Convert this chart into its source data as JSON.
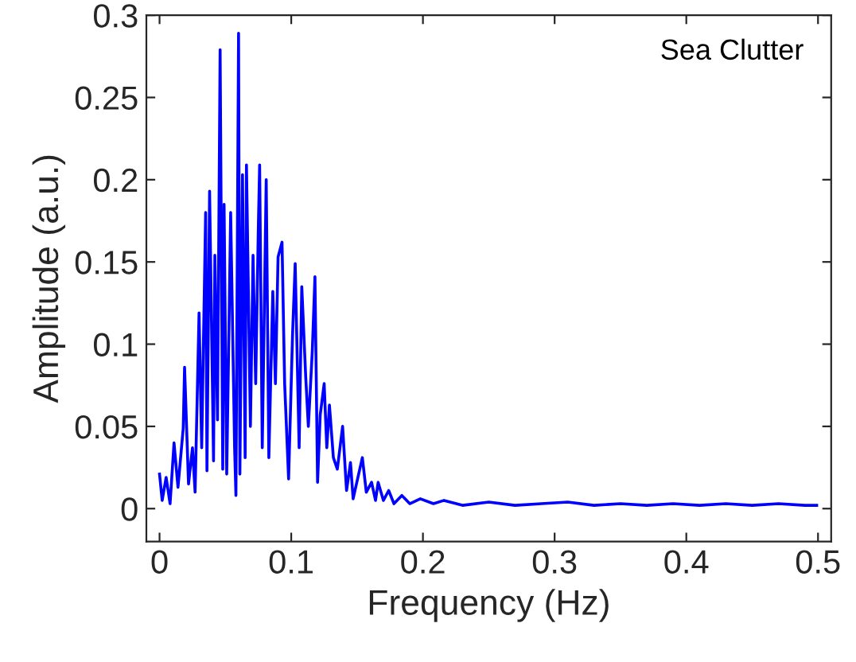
{
  "chart_data": {
    "type": "line",
    "xlabel": "Frequency (Hz)",
    "ylabel": "Amplitude (a.u.)",
    "annotations": [
      "Sea Clutter"
    ],
    "xlim": [
      -0.01,
      0.51
    ],
    "ylim": [
      -0.02,
      0.3
    ],
    "xticks": [
      0,
      0.1,
      0.2,
      0.3,
      0.4,
      0.5
    ],
    "yticks": [
      0,
      0.05,
      0.1,
      0.15,
      0.2,
      0.25,
      0.3
    ],
    "grid": false,
    "marker": "none",
    "line_style": "solid",
    "series": [
      {
        "color": "#0000ff",
        "x": [
          0,
          0.002,
          0.005,
          0.008,
          0.011,
          0.014,
          0.018,
          0.019,
          0.022,
          0.025,
          0.027,
          0.03,
          0.032,
          0.035,
          0.036,
          0.038,
          0.041,
          0.042,
          0.044,
          0.046,
          0.048,
          0.049,
          0.051,
          0.053,
          0.054,
          0.057,
          0.058,
          0.06,
          0.061,
          0.063,
          0.065,
          0.066,
          0.069,
          0.071,
          0.073,
          0.075,
          0.076,
          0.078,
          0.081,
          0.083,
          0.086,
          0.088,
          0.09,
          0.093,
          0.095,
          0.098,
          0.101,
          0.103,
          0.106,
          0.108,
          0.111,
          0.113,
          0.116,
          0.118,
          0.12,
          0.122,
          0.125,
          0.127,
          0.129,
          0.132,
          0.135,
          0.139,
          0.142,
          0.145,
          0.147,
          0.154,
          0.157,
          0.161,
          0.164,
          0.166,
          0.17,
          0.174,
          0.178,
          0.184,
          0.19,
          0.198,
          0.208,
          0.216,
          0.23,
          0.25,
          0.27,
          0.29,
          0.31,
          0.33,
          0.35,
          0.37,
          0.39,
          0.41,
          0.43,
          0.45,
          0.47,
          0.49,
          0.499
        ],
        "values": [
          0.021,
          0.005,
          0.019,
          0.003,
          0.04,
          0.013,
          0.049,
          0.086,
          0.015,
          0.037,
          0.01,
          0.119,
          0.037,
          0.18,
          0.023,
          0.193,
          0.029,
          0.154,
          0.054,
          0.279,
          0.024,
          0.185,
          0.021,
          0.125,
          0.18,
          0.037,
          0.008,
          0.289,
          0.021,
          0.203,
          0.031,
          0.209,
          0.05,
          0.154,
          0.076,
          0.17,
          0.209,
          0.037,
          0.2,
          0.031,
          0.132,
          0.076,
          0.153,
          0.162,
          0.076,
          0.018,
          0.106,
          0.149,
          0.037,
          0.135,
          0.08,
          0.05,
          0.096,
          0.141,
          0.016,
          0.057,
          0.076,
          0.037,
          0.063,
          0.031,
          0.024,
          0.05,
          0.011,
          0.028,
          0.006,
          0.031,
          0.01,
          0.016,
          0.005,
          0.016,
          0.005,
          0.011,
          0.003,
          0.008,
          0.003,
          0.006,
          0.003,
          0.005,
          0.002,
          0.004,
          0.002,
          0.003,
          0.004,
          0.002,
          0.003,
          0.002,
          0.003,
          0.002,
          0.003,
          0.002,
          0.003,
          0.002,
          0.002
        ]
      }
    ]
  }
}
